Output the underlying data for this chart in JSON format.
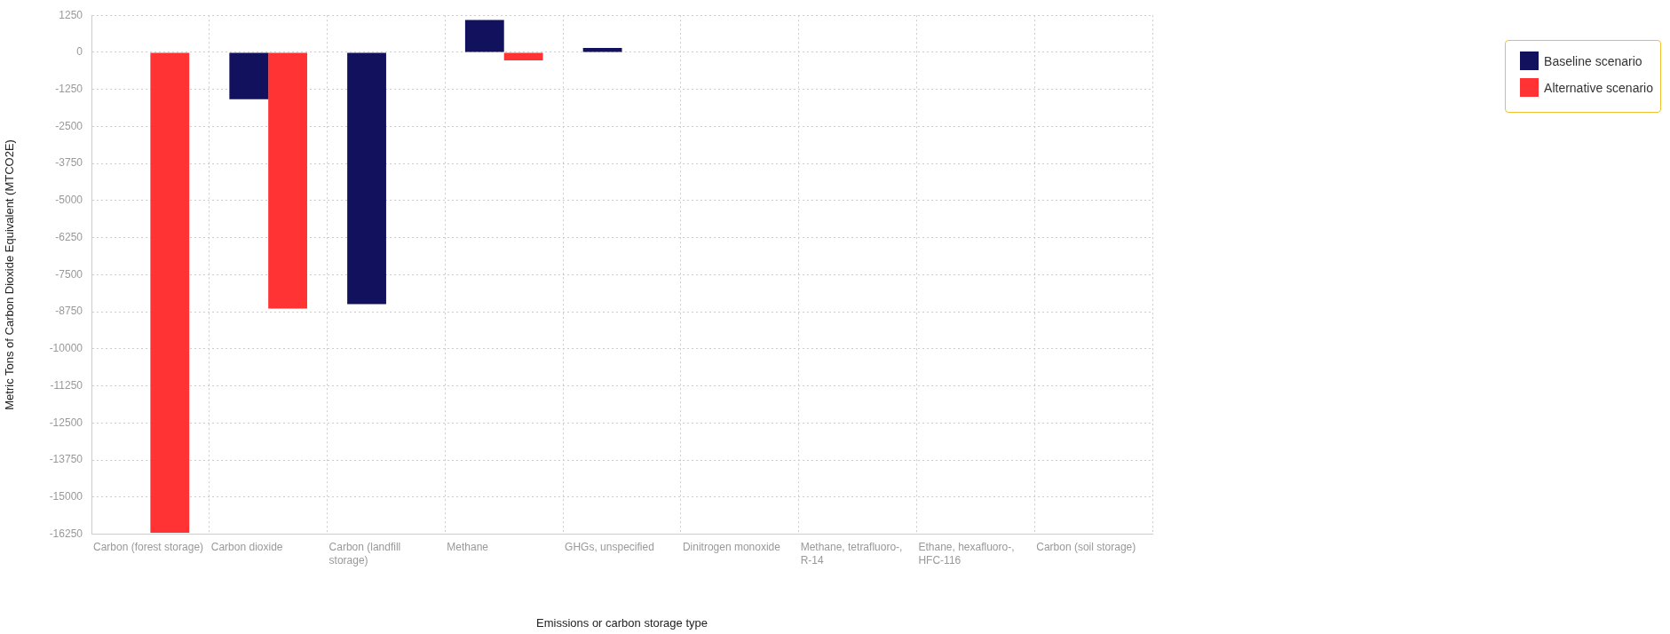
{
  "chart_data": {
    "type": "bar",
    "xlabel": "Emissions or carbon storage type",
    "ylabel": "Metric Tons of Carbon Dioxide Equivalent (MTCO2E)",
    "categories": [
      "Carbon (forest storage)",
      "Carbon dioxide",
      "Carbon (landfill storage)",
      "Methane",
      "GHGs, unspecified",
      "Dinitrogen monoxide",
      "Methane, tetrafluoro-, R-14",
      "Ethane, hexafluoro-, HFC-116",
      "Carbon (soil storage)"
    ],
    "series": [
      {
        "name": "Baseline scenario",
        "color": "#11115e",
        "values": [
          0,
          -1580,
          -8490,
          1090,
          150,
          0,
          0,
          0,
          0
        ]
      },
      {
        "name": "Alternative scenario",
        "color": "#ff3333",
        "values": [
          -16200,
          -8640,
          0,
          -270,
          0,
          0,
          0,
          0,
          0
        ]
      }
    ],
    "ylim": [
      -16250,
      1250
    ],
    "yticks": [
      1250,
      0,
      -1250,
      -2500,
      -3750,
      -5000,
      -6250,
      -7500,
      -8750,
      -10000,
      -11250,
      -12500,
      -13750,
      -15000,
      -16250
    ],
    "grid": true,
    "legend": "top right"
  }
}
